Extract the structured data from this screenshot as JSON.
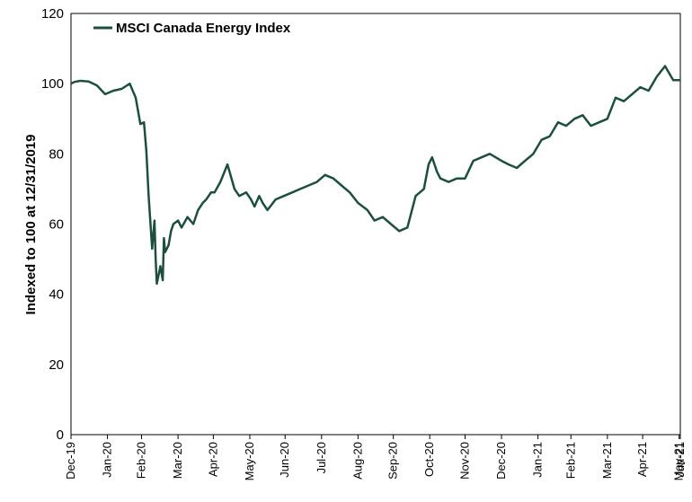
{
  "chart_data": {
    "type": "line",
    "title": "",
    "ylabel": "Indexed to 100 at 12/31/2019",
    "xlabel": "",
    "ylim": [
      0,
      120
    ],
    "yticks": [
      0,
      20,
      40,
      60,
      80,
      100,
      120
    ],
    "grid": false,
    "legend_position": "top-left",
    "x_tick_labels": [
      "Dec-19",
      "Jan-20",
      "Feb-20",
      "Mar-20",
      "Apr-20",
      "May-20",
      "Jun-20",
      "Jul-20",
      "Aug-20",
      "Sep-20",
      "Oct-20",
      "Nov-20",
      "Dec-20",
      "Jan-21",
      "Feb-21",
      "Mar-21",
      "Apr-21",
      "May-21",
      "Jun-21"
    ],
    "series": [
      {
        "name": "MSCI Canada Energy Index",
        "color": "#1c4f3f",
        "x": [
          "2019-12-31",
          "2020-01-03",
          "2020-01-08",
          "2020-01-15",
          "2020-01-22",
          "2020-01-29",
          "2020-02-05",
          "2020-02-12",
          "2020-02-19",
          "2020-02-24",
          "2020-02-28",
          "2020-03-02",
          "2020-03-04",
          "2020-03-06",
          "2020-03-09",
          "2020-03-11",
          "2020-03-12",
          "2020-03-13",
          "2020-03-16",
          "2020-03-18",
          "2020-03-19",
          "2020-03-20",
          "2020-03-23",
          "2020-03-25",
          "2020-03-27",
          "2020-03-31",
          "2020-04-03",
          "2020-04-08",
          "2020-04-13",
          "2020-04-17",
          "2020-04-21",
          "2020-04-24",
          "2020-04-28",
          "2020-05-01",
          "2020-05-06",
          "2020-05-12",
          "2020-05-18",
          "2020-05-22",
          "2020-05-28",
          "2020-06-01",
          "2020-06-04",
          "2020-06-08",
          "2020-06-11",
          "2020-06-15",
          "2020-06-22",
          "2020-06-29",
          "2020-07-06",
          "2020-07-13",
          "2020-07-20",
          "2020-07-27",
          "2020-08-03",
          "2020-08-10",
          "2020-08-17",
          "2020-08-24",
          "2020-08-31",
          "2020-09-08",
          "2020-09-14",
          "2020-09-21",
          "2020-09-28",
          "2020-10-05",
          "2020-10-12",
          "2020-10-19",
          "2020-10-26",
          "2020-10-30",
          "2020-11-02",
          "2020-11-06",
          "2020-11-09",
          "2020-11-16",
          "2020-11-23",
          "2020-11-30",
          "2020-12-07",
          "2020-12-14",
          "2020-12-21",
          "2020-12-31",
          "2021-01-06",
          "2021-01-13",
          "2021-01-20",
          "2021-01-27",
          "2021-02-03",
          "2021-02-10",
          "2021-02-17",
          "2021-02-24",
          "2021-03-03",
          "2021-03-10",
          "2021-03-17",
          "2021-03-24",
          "2021-03-31",
          "2021-04-07",
          "2021-04-14",
          "2021-04-21",
          "2021-04-28",
          "2021-05-05",
          "2021-05-12",
          "2021-05-19",
          "2021-05-26",
          "2021-06-01"
        ],
        "values": [
          100,
          100.5,
          100.8,
          100.6,
          99.5,
          97,
          98,
          98.5,
          100,
          96,
          88.5,
          89,
          81,
          68,
          53,
          61,
          50,
          43,
          48,
          44,
          56,
          52,
          54,
          58,
          60,
          61,
          59,
          62,
          60,
          64,
          66,
          67,
          69,
          69,
          72,
          77,
          70,
          68,
          69,
          67,
          65,
          68,
          66,
          64,
          67,
          68,
          69,
          70,
          71,
          72,
          74,
          73,
          71,
          69,
          66,
          64,
          61,
          62,
          60,
          58,
          59,
          68,
          70,
          77,
          79,
          75,
          73,
          72,
          73,
          73,
          78,
          79,
          80,
          78,
          77,
          76,
          78,
          80,
          84,
          85,
          89,
          88,
          90,
          91,
          88,
          89,
          90,
          96,
          95,
          97,
          99,
          98,
          102,
          105,
          101,
          101
        ]
      }
    ]
  }
}
